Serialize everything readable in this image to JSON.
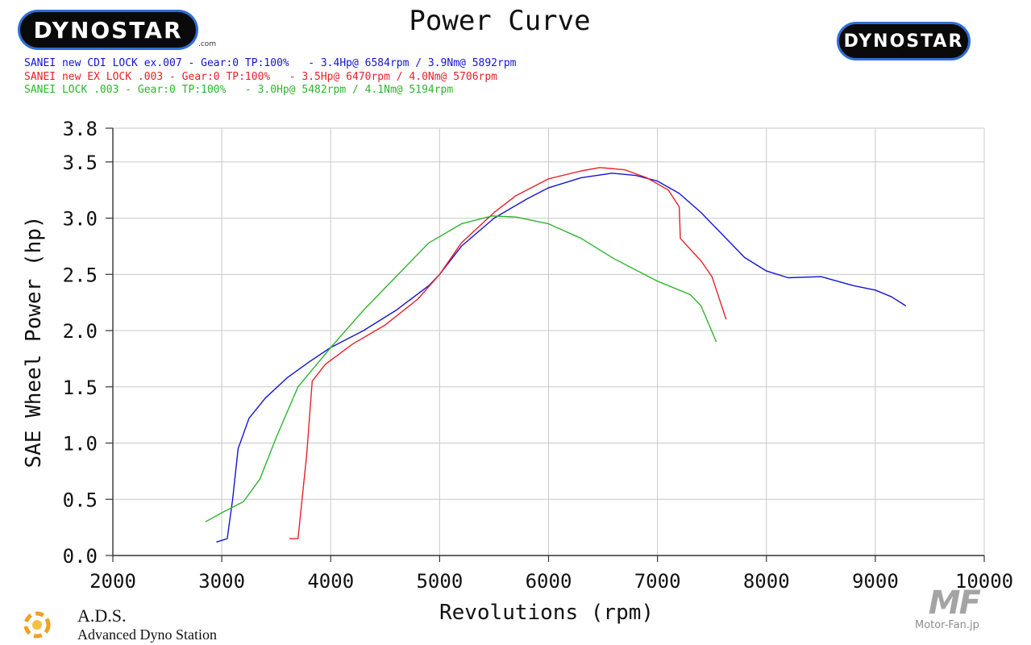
{
  "header": {
    "title": "Power Curve",
    "brand": "DYNOSTAR",
    "brand_suffix": ".com"
  },
  "runs": [
    {
      "label": "SANEI new CDI LOCK ex.007 - Gear:0 TP:100%   - 3.4Hp@ 6584rpm / 3.9Nm@ 5892rpm",
      "color": "#1414d6"
    },
    {
      "label": "SANEI new EX LOCK .003 - Gear:0 TP:100%   - 3.5Hp@ 6470rpm / 4.0Nm@ 5706rpm",
      "color": "#e8202a"
    },
    {
      "label": "SANEI LOCK .003 - Gear:0 TP:100%   - 3.0Hp@ 5482rpm / 4.1Nm@ 5194rpm",
      "color": "#2db52d"
    }
  ],
  "footer": {
    "ads_title": "A.D.S.",
    "ads_subtitle": "Advanced Dyno Station",
    "watermark": "MF",
    "watermark_sub": "Motor-Fan.jp"
  },
  "chart_data": {
    "type": "line",
    "title": "Power Curve",
    "xlabel": "Revolutions (rpm)",
    "ylabel": "SAE Wheel Power (hp)",
    "xlim": [
      2000,
      10000
    ],
    "ylim": [
      0,
      3.8
    ],
    "x_ticks": [
      "2000",
      "3000",
      "4000",
      "5000",
      "6000",
      "7000",
      "8000",
      "9000",
      "10000"
    ],
    "y_ticks": [
      "0.0",
      "0.5",
      "1.0",
      "1.5",
      "2.0",
      "2.5",
      "3.0",
      "3.5",
      "3.8"
    ],
    "grid": true,
    "series": [
      {
        "color": "#1414d6",
        "points": [
          [
            2950,
            0.12
          ],
          [
            3050,
            0.15
          ],
          [
            3100,
            0.5
          ],
          [
            3150,
            0.95
          ],
          [
            3250,
            1.22
          ],
          [
            3400,
            1.4
          ],
          [
            3600,
            1.58
          ],
          [
            3800,
            1.72
          ],
          [
            4000,
            1.85
          ],
          [
            4300,
            2.0
          ],
          [
            4600,
            2.18
          ],
          [
            4900,
            2.4
          ],
          [
            5000,
            2.5
          ],
          [
            5200,
            2.75
          ],
          [
            5500,
            3.0
          ],
          [
            5800,
            3.17
          ],
          [
            6000,
            3.27
          ],
          [
            6300,
            3.36
          ],
          [
            6584,
            3.4
          ],
          [
            6800,
            3.38
          ],
          [
            7000,
            3.33
          ],
          [
            7200,
            3.22
          ],
          [
            7400,
            3.05
          ],
          [
            7600,
            2.85
          ],
          [
            7800,
            2.65
          ],
          [
            8000,
            2.53
          ],
          [
            8200,
            2.47
          ],
          [
            8500,
            2.48
          ],
          [
            8800,
            2.4
          ],
          [
            9000,
            2.36
          ],
          [
            9150,
            2.3
          ],
          [
            9280,
            2.22
          ]
        ]
      },
      {
        "color": "#e8202a",
        "points": [
          [
            3620,
            0.15
          ],
          [
            3700,
            0.15
          ],
          [
            3780,
            0.9
          ],
          [
            3830,
            1.55
          ],
          [
            3950,
            1.7
          ],
          [
            4200,
            1.88
          ],
          [
            4500,
            2.05
          ],
          [
            4800,
            2.28
          ],
          [
            5000,
            2.5
          ],
          [
            5200,
            2.78
          ],
          [
            5500,
            3.05
          ],
          [
            5700,
            3.2
          ],
          [
            6000,
            3.35
          ],
          [
            6300,
            3.42
          ],
          [
            6470,
            3.45
          ],
          [
            6700,
            3.43
          ],
          [
            6900,
            3.36
          ],
          [
            7100,
            3.25
          ],
          [
            7200,
            3.1
          ],
          [
            7210,
            2.82
          ],
          [
            7400,
            2.62
          ],
          [
            7500,
            2.48
          ],
          [
            7630,
            2.1
          ]
        ]
      },
      {
        "color": "#2db52d",
        "points": [
          [
            2850,
            0.3
          ],
          [
            3000,
            0.38
          ],
          [
            3200,
            0.48
          ],
          [
            3350,
            0.68
          ],
          [
            3500,
            1.05
          ],
          [
            3700,
            1.5
          ],
          [
            4000,
            1.85
          ],
          [
            4300,
            2.18
          ],
          [
            4600,
            2.48
          ],
          [
            4900,
            2.78
          ],
          [
            5200,
            2.95
          ],
          [
            5482,
            3.02
          ],
          [
            5700,
            3.01
          ],
          [
            6000,
            2.95
          ],
          [
            6300,
            2.82
          ],
          [
            6600,
            2.64
          ],
          [
            7000,
            2.44
          ],
          [
            7300,
            2.32
          ],
          [
            7400,
            2.22
          ],
          [
            7540,
            1.9
          ]
        ]
      }
    ]
  }
}
